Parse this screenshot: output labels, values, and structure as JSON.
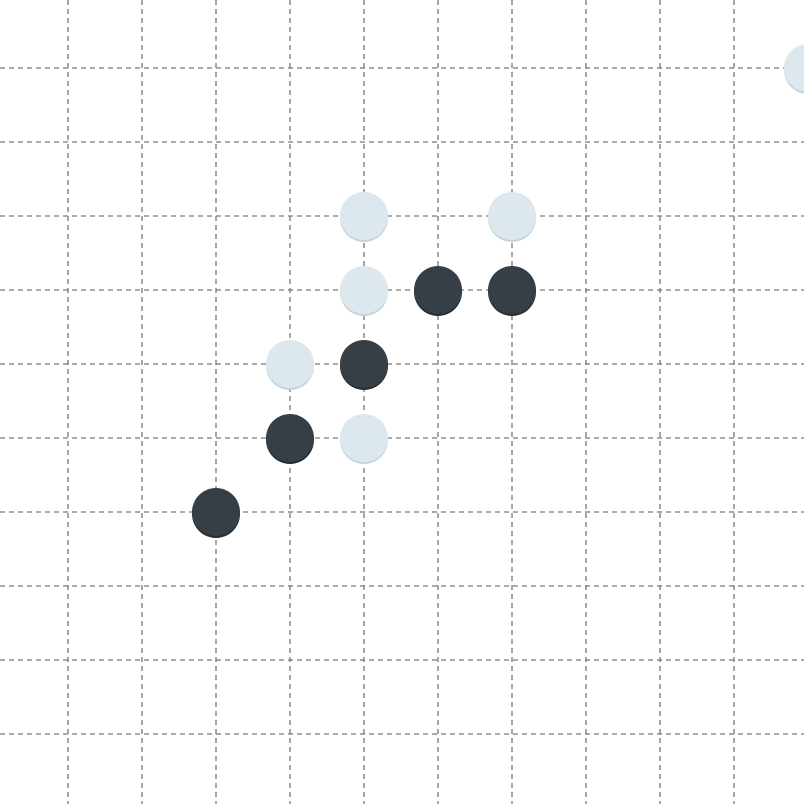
{
  "board": {
    "grid_lines": 11,
    "colors": {
      "background": "#ffffff",
      "grid": "#777777",
      "black_stone": "#373f46",
      "black_stone_shadow": "#262d33",
      "white_stone": "#dde7ee",
      "white_stone_shadow": "#c5d3dc"
    },
    "stones": [
      {
        "color": "white",
        "col": 10,
        "row": 0
      },
      {
        "color": "white",
        "col": 4,
        "row": 2
      },
      {
        "color": "white",
        "col": 6,
        "row": 2
      },
      {
        "color": "white",
        "col": 4,
        "row": 3
      },
      {
        "color": "black",
        "col": 5,
        "row": 3
      },
      {
        "color": "black",
        "col": 6,
        "row": 3
      },
      {
        "color": "white",
        "col": 3,
        "row": 4
      },
      {
        "color": "black",
        "col": 4,
        "row": 4
      },
      {
        "color": "black",
        "col": 3,
        "row": 5
      },
      {
        "color": "white",
        "col": 4,
        "row": 5
      },
      {
        "color": "black",
        "col": 2,
        "row": 6
      }
    ]
  }
}
